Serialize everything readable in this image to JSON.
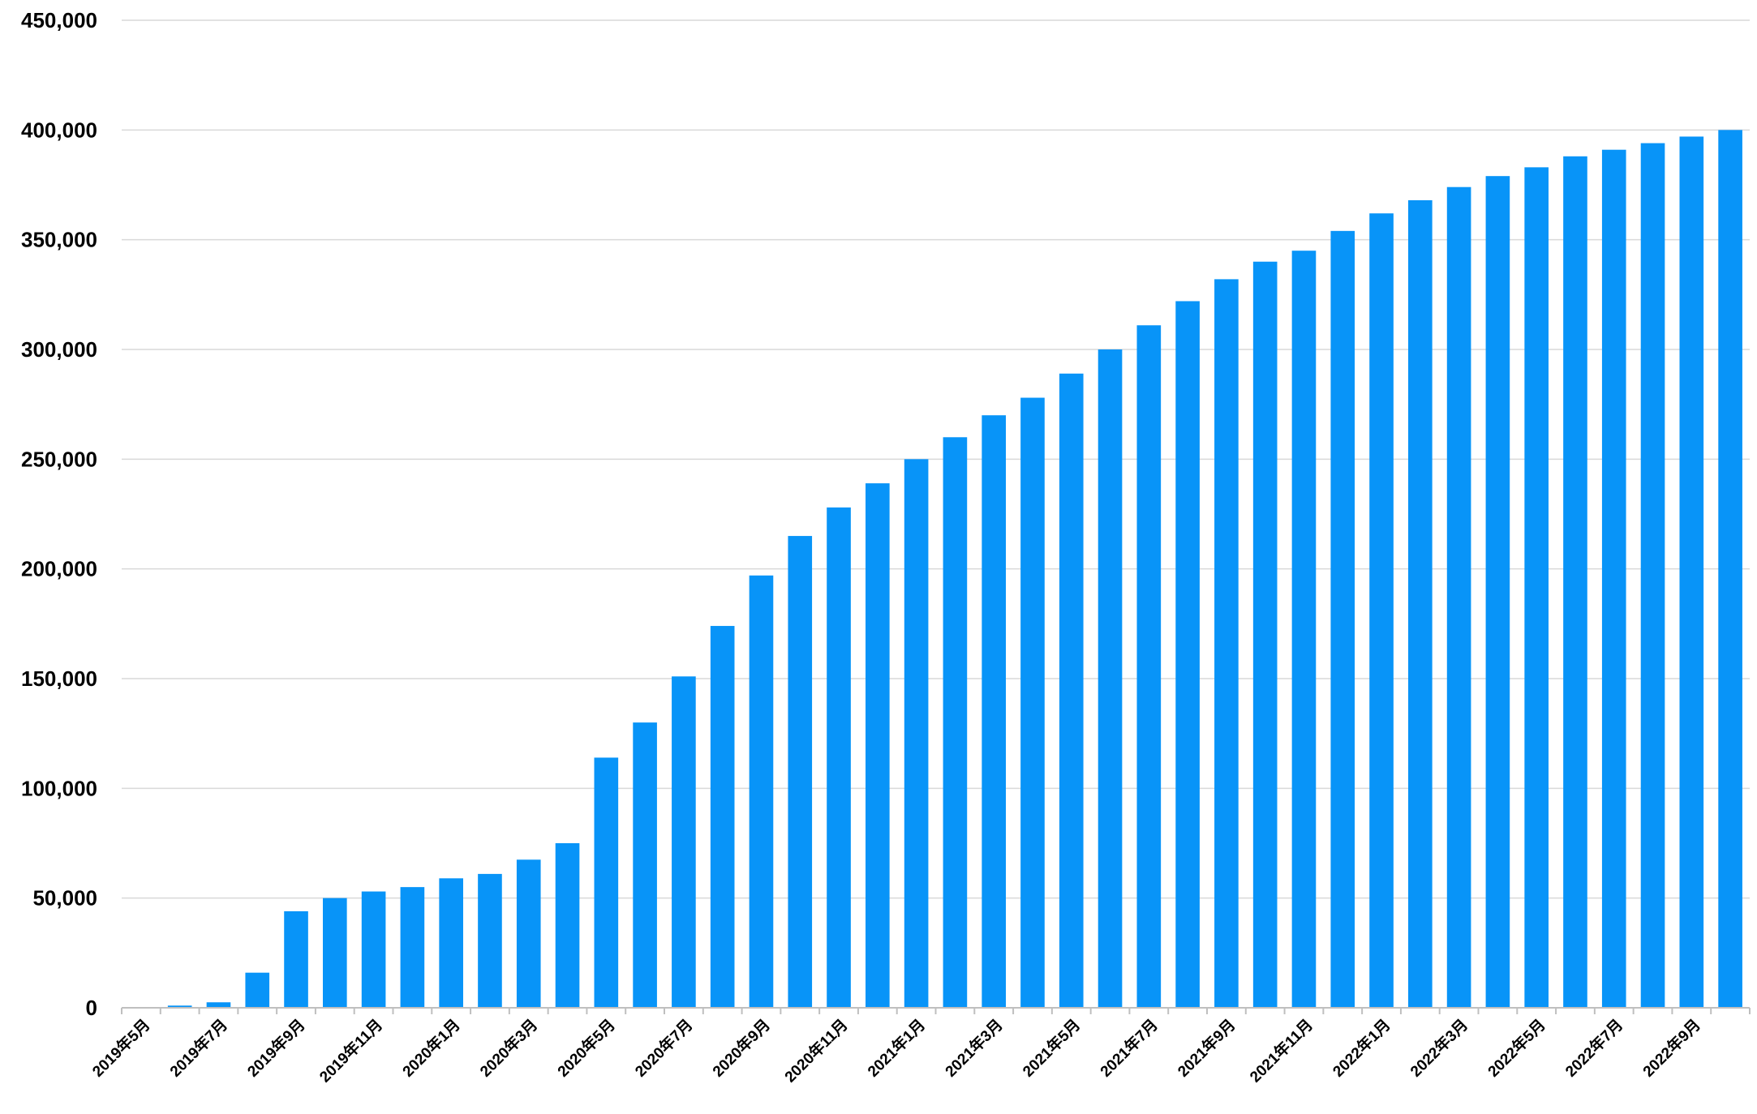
{
  "colors": {
    "bar": "#0894f8",
    "grid": "#d9d9d9",
    "axis": "#bfbfbf",
    "text": "#000000"
  },
  "chart_data": {
    "type": "bar",
    "title": "",
    "xlabel": "",
    "ylabel": "",
    "ylim": [
      0,
      450000
    ],
    "yticks": [
      0,
      50000,
      100000,
      150000,
      200000,
      250000,
      300000,
      350000,
      400000,
      450000
    ],
    "ytick_labels": [
      "0",
      "50,000",
      "100,000",
      "150,000",
      "200,000",
      "250,000",
      "300,000",
      "350,000",
      "400,000",
      "450,000"
    ],
    "grid": true,
    "legend": "none",
    "categories": [
      "2019年5月",
      "2019年6月",
      "2019年7月",
      "2019年8月",
      "2019年9月",
      "2019年10月",
      "2019年11月",
      "2019年12月",
      "2020年1月",
      "2020年2月",
      "2020年3月",
      "2020年4月",
      "2020年5月",
      "2020年6月",
      "2020年7月",
      "2020年8月",
      "2020年9月",
      "2020年10月",
      "2020年11月",
      "2020年12月",
      "2021年1月",
      "2021年2月",
      "2021年3月",
      "2021年4月",
      "2021年5月",
      "2021年6月",
      "2021年7月",
      "2021年8月",
      "2021年9月",
      "2021年10月",
      "2021年11月",
      "2021年12月",
      "2022年1月",
      "2022年2月",
      "2022年3月",
      "2022年4月",
      "2022年5月",
      "2022年6月",
      "2022年7月",
      "2022年8月",
      "2022年9月",
      "2022年10月"
    ],
    "x_tick_labels": [
      "2019年5月",
      "2019年7月",
      "2019年9月",
      "2019年11月",
      "2020年1月",
      "2020年3月",
      "2020年5月",
      "2020年7月",
      "2020年9月",
      "2020年11月",
      "2021年1月",
      "2021年3月",
      "2021年5月",
      "2021年7月",
      "2021年9月",
      "2021年11月",
      "2022年1月",
      "2022年3月",
      "2022年5月",
      "2022年7月",
      "2022年9月"
    ],
    "values": [
      0,
      1000,
      2500,
      16000,
      44000,
      50000,
      53000,
      55000,
      59000,
      61000,
      67500,
      75000,
      114000,
      130000,
      151000,
      174000,
      197000,
      215000,
      228000,
      239000,
      250000,
      260000,
      270000,
      278000,
      289000,
      300000,
      311000,
      322000,
      332000,
      340000,
      345000,
      354000,
      362000,
      368000,
      374000,
      379000,
      383000,
      388000,
      391000,
      394000,
      397000,
      400000
    ]
  }
}
